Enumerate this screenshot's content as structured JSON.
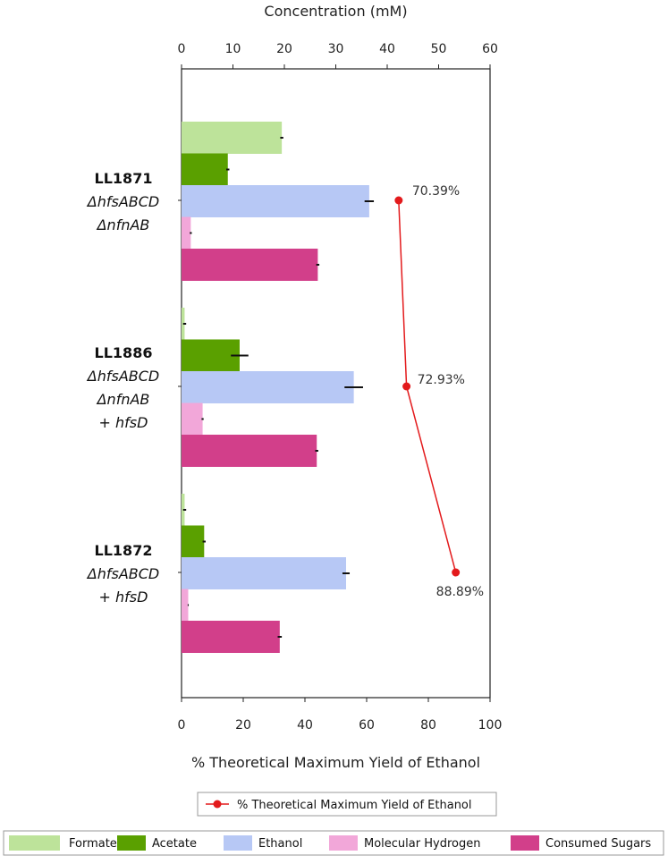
{
  "chart_data": {
    "type": "bar",
    "orientation": "horizontal",
    "top_axis": {
      "label": "Concentration (mM)",
      "range": [
        0,
        60
      ],
      "ticks": [
        0,
        10,
        20,
        30,
        40,
        50,
        60
      ]
    },
    "bottom_axis": {
      "label": "% Theoretical Maximum Yield of Ethanol",
      "range": [
        0,
        100
      ],
      "ticks": [
        0,
        20,
        40,
        60,
        80,
        100
      ]
    },
    "groups": [
      {
        "id": "LL1871",
        "label_lines": [
          "LL1871",
          "ΔhfsABCD",
          "ΔnfnAB"
        ]
      },
      {
        "id": "LL1886",
        "label_lines": [
          "LL1886",
          "ΔhfsABCD",
          "ΔnfnAB",
          "+ hfsD"
        ]
      },
      {
        "id": "LL1872",
        "label_lines": [
          "LL1872",
          "ΔhfsABCD",
          "+ hfsD"
        ]
      }
    ],
    "series": [
      {
        "name": "Formate",
        "color": "#bde39a",
        "values": [
          19.5,
          0.6,
          0.6
        ],
        "errors": [
          0.3,
          0.3,
          0.3
        ]
      },
      {
        "name": "Acetate",
        "color": "#5aa000",
        "values": [
          9.0,
          11.3,
          4.4
        ],
        "errors": [
          0.3,
          1.7,
          0.3
        ]
      },
      {
        "name": "Ethanol",
        "color": "#b7c8f5",
        "values": [
          36.5,
          33.5,
          32.0
        ],
        "errors": [
          0.9,
          1.8,
          0.7
        ]
      },
      {
        "name": "Molecular Hydrogen",
        "color": "#f2a7d9",
        "values": [
          1.8,
          4.1,
          1.3
        ],
        "errors": [
          0.2,
          0.2,
          0.1
        ]
      },
      {
        "name": "Consumed Sugars",
        "color": "#d23f8a",
        "values": [
          26.5,
          26.3,
          19.1
        ],
        "errors": [
          0.3,
          0.3,
          0.4
        ]
      }
    ],
    "yield_line": {
      "name": "% Theoretical Maximum Yield of Ethanol",
      "color": "#e31a1c",
      "values": [
        70.39,
        72.93,
        88.89
      ],
      "labels": [
        "70.39%",
        "72.93%",
        "88.89%"
      ]
    },
    "legend_placement": "bottom",
    "grid": false
  }
}
